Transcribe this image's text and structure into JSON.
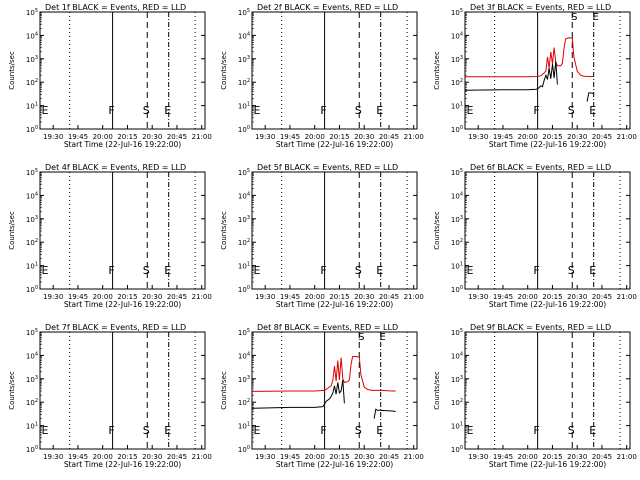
{
  "figure": {
    "background": "#ffffff",
    "events_color": "#000000",
    "lld_color": "#e00000"
  },
  "chart_data": [
    {
      "type": "line",
      "panel": 1,
      "title": "Det 1f BLACK = Events, RED = LLD",
      "xlabel": "Start Time (22-Jul-16 19:22:00)",
      "ylabel": "Counts/sec",
      "ylim": [
        1,
        100000
      ],
      "yscale": "log",
      "x_ticks": [
        "19:30",
        "19:45",
        "20:00",
        "20:15",
        "20:30",
        "20:45",
        "21:00"
      ],
      "y_ticks": [
        "10^0",
        "10^1",
        "10^2",
        "10^3",
        "10^4",
        "10^5"
      ],
      "markers": [
        {
          "label": "F",
          "x": "20:06",
          "line": "solid"
        },
        {
          "label": "S",
          "x": "20:27",
          "line": "dashed"
        },
        {
          "label": "E",
          "x": "20:40",
          "line": "dash-dot"
        }
      ],
      "dotted_lines": [
        "19:40",
        "20:56"
      ],
      "series": []
    },
    {
      "type": "line",
      "panel": 2,
      "title": "Det 2f BLACK = Events, RED = LLD",
      "xlabel": "Start Time (22-Jul-16 19:22:00)",
      "ylabel": "Counts/sec",
      "ylim": [
        1,
        100000
      ],
      "yscale": "log",
      "x_ticks": [
        "19:30",
        "19:45",
        "20:00",
        "20:15",
        "20:30",
        "20:45",
        "21:00"
      ],
      "y_ticks": [
        "10^0",
        "10^1",
        "10^2",
        "10^3",
        "10^4",
        "10^5"
      ],
      "markers": [
        {
          "label": "F",
          "x": "20:06",
          "line": "solid"
        },
        {
          "label": "S",
          "x": "20:27",
          "line": "dashed"
        },
        {
          "label": "E",
          "x": "20:40",
          "line": "dash-dot"
        }
      ],
      "dotted_lines": [
        "19:40",
        "20:56"
      ],
      "series": []
    },
    {
      "type": "line",
      "panel": 3,
      "title": "Det 3f BLACK = Events, RED = LLD",
      "xlabel": "Start Time (22-Jul-16 19:22:00)",
      "ylabel": "Counts/sec",
      "ylim": [
        1,
        100000
      ],
      "yscale": "log",
      "x_ticks": [
        "19:30",
        "19:45",
        "20:00",
        "20:15",
        "20:30",
        "20:45",
        "21:00"
      ],
      "y_ticks": [
        "10^0",
        "10^1",
        "10^2",
        "10^3",
        "10^4",
        "10^5"
      ],
      "markers": [
        {
          "label": "F",
          "x": "20:06",
          "line": "solid"
        },
        {
          "label": "S",
          "x": "20:27",
          "line": "dashed"
        },
        {
          "label": "E",
          "x": "20:40",
          "line": "dash-dot"
        }
      ],
      "dotted_lines": [
        "19:40",
        "20:56"
      ],
      "series": [
        {
          "color": "#e00000",
          "points": [
            [
              "19:22",
              170
            ],
            [
              "19:45",
              170
            ],
            [
              "20:00",
              170
            ],
            [
              "20:06",
              175
            ],
            [
              "20:08",
              190
            ],
            [
              "20:10",
              250
            ],
            [
              "20:11",
              300
            ],
            [
              "20:12",
              1200
            ],
            [
              "20:13",
              400
            ],
            [
              "20:14",
              2000
            ],
            [
              "20:15",
              600
            ],
            [
              "20:16",
              3000
            ],
            [
              "20:17",
              700
            ],
            [
              "20:18",
              500
            ],
            [
              "20:20",
              500
            ],
            [
              "20:21",
              650
            ],
            [
              "20:22",
              2800
            ],
            [
              "20:23",
              7000
            ],
            [
              "20:25",
              8000
            ],
            [
              "20:27",
              7500
            ],
            [
              "20:28",
              1200
            ],
            [
              "20:30",
              300
            ],
            [
              "20:32",
              200
            ],
            [
              "20:34",
              180
            ],
            [
              "20:38",
              175
            ],
            [
              "20:40",
              175
            ]
          ]
        },
        {
          "color": "#000000",
          "points": [
            [
              "19:22",
              45
            ],
            [
              "19:45",
              48
            ],
            [
              "20:00",
              48
            ],
            [
              "20:05",
              50
            ],
            [
              "20:06",
              52
            ],
            [
              "20:07",
              60
            ],
            [
              "20:08",
              70
            ],
            [
              "20:09",
              65
            ],
            [
              "20:10",
              120
            ],
            [
              "20:11",
              200
            ],
            [
              "20:12",
              130
            ],
            [
              "20:13",
              400
            ],
            [
              "20:14",
              140
            ],
            [
              "20:15",
              600
            ],
            [
              "20:16",
              150
            ],
            [
              "20:17",
              800
            ],
            [
              "20:18",
              80
            ]
          ]
        },
        {
          "color": "#000000",
          "points": [
            [
              "20:36",
              15
            ],
            [
              "20:37",
              35
            ],
            [
              "20:38",
              35
            ],
            [
              "20:40",
              33
            ]
          ]
        }
      ]
    },
    {
      "type": "line",
      "panel": 4,
      "title": "Det 4f BLACK = Events, RED = LLD",
      "xlabel": "Start Time (22-Jul-16 19:22:00)",
      "ylabel": "Counts/sec",
      "ylim": [
        1,
        100000
      ],
      "yscale": "log",
      "x_ticks": [
        "19:30",
        "19:45",
        "20:00",
        "20:15",
        "20:30",
        "20:45",
        "21:00"
      ],
      "y_ticks": [
        "10^0",
        "10^1",
        "10^2",
        "10^3",
        "10^4",
        "10^5"
      ],
      "markers": [
        {
          "label": "F",
          "x": "20:06",
          "line": "solid"
        },
        {
          "label": "S",
          "x": "20:27",
          "line": "dashed"
        },
        {
          "label": "E",
          "x": "20:40",
          "line": "dash-dot"
        }
      ],
      "dotted_lines": [
        "19:40",
        "20:56"
      ],
      "series": []
    },
    {
      "type": "line",
      "panel": 5,
      "title": "Det 5f BLACK = Events, RED = LLD",
      "xlabel": "Start Time (22-Jul-16 19:22:00)",
      "ylabel": "Counts/sec",
      "ylim": [
        1,
        100000
      ],
      "yscale": "log",
      "x_ticks": [
        "19:30",
        "19:45",
        "20:00",
        "20:15",
        "20:30",
        "20:45",
        "21:00"
      ],
      "y_ticks": [
        "10^0",
        "10^1",
        "10^2",
        "10^3",
        "10^4",
        "10^5"
      ],
      "markers": [
        {
          "label": "F",
          "x": "20:06",
          "line": "solid"
        },
        {
          "label": "S",
          "x": "20:27",
          "line": "dashed"
        },
        {
          "label": "E",
          "x": "20:40",
          "line": "dash-dot"
        }
      ],
      "dotted_lines": [
        "19:40",
        "20:56"
      ],
      "series": []
    },
    {
      "type": "line",
      "panel": 6,
      "title": "Det 6f BLACK = Events, RED = LLD",
      "xlabel": "Start Time (22-Jul-16 19:22:00)",
      "ylabel": "Counts/sec",
      "ylim": [
        1,
        100000
      ],
      "yscale": "log",
      "x_ticks": [
        "19:30",
        "19:45",
        "20:00",
        "20:15",
        "20:30",
        "20:45",
        "21:00"
      ],
      "y_ticks": [
        "10^0",
        "10^1",
        "10^2",
        "10^3",
        "10^4",
        "10^5"
      ],
      "markers": [
        {
          "label": "F",
          "x": "20:06",
          "line": "solid"
        },
        {
          "label": "S",
          "x": "20:27",
          "line": "dashed"
        },
        {
          "label": "E",
          "x": "20:40",
          "line": "dash-dot"
        }
      ],
      "dotted_lines": [
        "19:40",
        "20:56"
      ],
      "series": []
    },
    {
      "type": "line",
      "panel": 7,
      "title": "Det 7f BLACK = Events, RED = LLD",
      "xlabel": "Start Time (22-Jul-16 19:22:00)",
      "ylabel": "Counts/sec",
      "ylim": [
        1,
        100000
      ],
      "yscale": "log",
      "x_ticks": [
        "19:30",
        "19:45",
        "20:00",
        "20:15",
        "20:30",
        "20:45",
        "21:00"
      ],
      "y_ticks": [
        "10^0",
        "10^1",
        "10^2",
        "10^3",
        "10^4",
        "10^5"
      ],
      "markers": [
        {
          "label": "F",
          "x": "20:06",
          "line": "solid"
        },
        {
          "label": "S",
          "x": "20:27",
          "line": "dashed"
        },
        {
          "label": "E",
          "x": "20:40",
          "line": "dash-dot"
        }
      ],
      "dotted_lines": [
        "19:40",
        "20:56"
      ],
      "series": []
    },
    {
      "type": "line",
      "panel": 8,
      "title": "Det 8f BLACK = Events, RED = LLD",
      "xlabel": "Start Time (22-Jul-16 19:22:00)",
      "ylabel": "Counts/sec",
      "ylim": [
        1,
        100000
      ],
      "yscale": "log",
      "x_ticks": [
        "19:30",
        "19:45",
        "20:00",
        "20:15",
        "20:30",
        "20:45",
        "21:00"
      ],
      "y_ticks": [
        "10^0",
        "10^1",
        "10^2",
        "10^3",
        "10^4",
        "10^5"
      ],
      "markers": [
        {
          "label": "F",
          "x": "20:06",
          "line": "solid"
        },
        {
          "label": "S",
          "x": "20:27",
          "line": "dashed"
        },
        {
          "label": "E",
          "x": "20:40",
          "line": "dash-dot"
        }
      ],
      "dotted_lines": [
        "19:40",
        "20:56"
      ],
      "series": [
        {
          "color": "#e00000",
          "points": [
            [
              "19:22",
              290
            ],
            [
              "19:45",
              300
            ],
            [
              "20:00",
              300
            ],
            [
              "20:06",
              320
            ],
            [
              "20:08",
              400
            ],
            [
              "20:10",
              500
            ],
            [
              "20:11",
              900
            ],
            [
              "20:12",
              3500
            ],
            [
              "20:13",
              800
            ],
            [
              "20:14",
              6000
            ],
            [
              "20:15",
              900
            ],
            [
              "20:16",
              8000
            ],
            [
              "20:17",
              1000
            ],
            [
              "20:18",
              700
            ],
            [
              "20:20",
              750
            ],
            [
              "20:21",
              900
            ],
            [
              "20:22",
              4000
            ],
            [
              "20:23",
              9000
            ],
            [
              "20:25",
              9000
            ],
            [
              "20:27",
              8500
            ],
            [
              "20:28",
              1500
            ],
            [
              "20:30",
              450
            ],
            [
              "20:32",
              350
            ],
            [
              "20:35",
              320
            ],
            [
              "20:40",
              320
            ],
            [
              "20:47",
              300
            ],
            [
              "20:49",
              300
            ]
          ]
        },
        {
          "color": "#000000",
          "points": [
            [
              "19:22",
              55
            ],
            [
              "19:45",
              60
            ],
            [
              "20:00",
              60
            ],
            [
              "20:05",
              65
            ],
            [
              "20:07",
              110
            ],
            [
              "20:09",
              140
            ],
            [
              "20:10",
              180
            ],
            [
              "20:11",
              250
            ],
            [
              "20:12",
              500
            ],
            [
              "20:13",
              220
            ],
            [
              "20:14",
              700
            ],
            [
              "20:15",
              250
            ],
            [
              "20:16",
              300
            ],
            [
              "20:17",
              900
            ],
            [
              "20:18",
              90
            ]
          ]
        },
        {
          "color": "#000000",
          "points": [
            [
              "20:36",
              20
            ],
            [
              "20:37",
              50
            ],
            [
              "20:38",
              45
            ],
            [
              "20:40",
              45
            ],
            [
              "20:47",
              42
            ],
            [
              "20:49",
              40
            ]
          ]
        }
      ]
    },
    {
      "type": "line",
      "panel": 9,
      "title": "Det 9f BLACK = Events, RED = LLD",
      "xlabel": "Start Time (22-Jul-16 19:22:00)",
      "ylabel": "Counts/sec",
      "ylim": [
        1,
        100000
      ],
      "yscale": "log",
      "x_ticks": [
        "19:30",
        "19:45",
        "20:00",
        "20:15",
        "20:30",
        "20:45",
        "21:00"
      ],
      "y_ticks": [
        "10^0",
        "10^1",
        "10^2",
        "10^3",
        "10^4",
        "10^5"
      ],
      "markers": [
        {
          "label": "F",
          "x": "20:06",
          "line": "solid"
        },
        {
          "label": "S",
          "x": "20:27",
          "line": "dashed"
        },
        {
          "label": "E",
          "x": "20:40",
          "line": "dash-dot"
        }
      ],
      "dotted_lines": [
        "19:40",
        "20:56"
      ],
      "series": []
    }
  ]
}
